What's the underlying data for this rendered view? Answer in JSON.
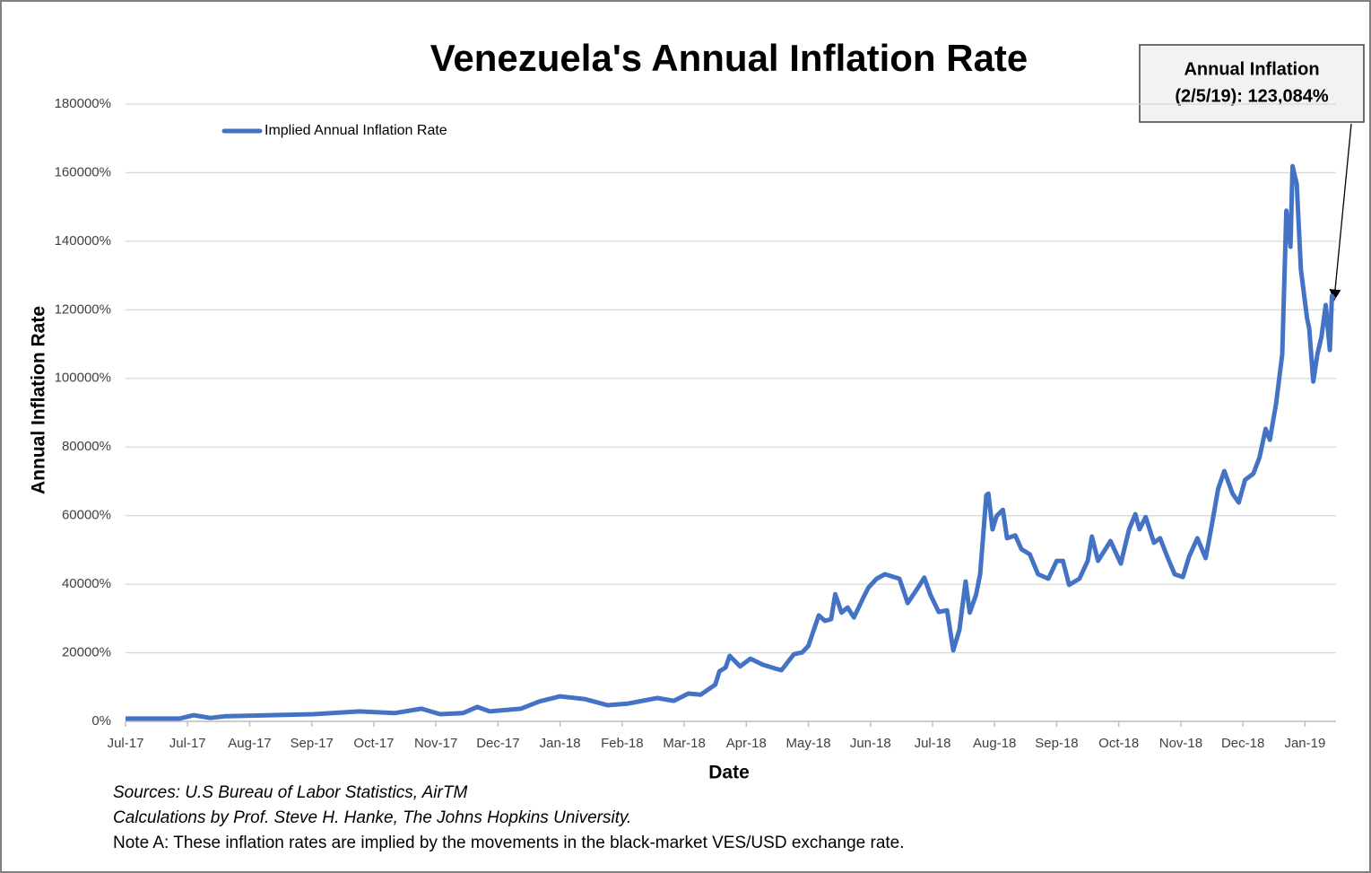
{
  "chart_data": {
    "type": "line",
    "title": "Venezuela's Annual Inflation Rate",
    "x_label": "Date",
    "y_label": "Annual Inflation Rate",
    "annotation": [
      "Annual Inflation",
      "(2/5/19): 123,084%"
    ],
    "notes": [
      "Sources: U.S Bureau of Labor Statistics, AirTM",
      "Calculations by Prof. Steve H. Hanke, The Johns Hopkins University.",
      "Note A: These inflation rates are implied by the movements in the black-market VES/USD exchange rate."
    ],
    "legend": "top-left",
    "grid": true,
    "x": [
      0,
      26,
      33,
      41,
      48,
      70,
      91,
      113,
      130,
      143,
      152,
      163,
      170,
      176,
      191,
      200,
      210,
      222,
      233,
      243,
      257,
      265,
      272,
      278,
      285,
      287,
      290,
      292,
      297,
      302,
      308,
      314,
      317,
      323,
      327,
      330,
      335,
      338,
      341,
      343,
      346,
      349,
      352,
      357,
      359,
      363,
      367,
      374,
      378,
      383,
      386,
      389,
      393,
      397,
      400,
      403,
      406,
      408,
      411,
      413,
      416,
      417,
      419,
      421,
      424,
      426,
      430,
      433,
      437,
      441,
      446,
      450,
      453,
      456,
      461,
      465,
      467,
      470,
      476,
      481,
      485,
      488,
      490,
      493,
      497,
      500,
      503,
      507,
      511,
      514,
      518,
      522,
      525,
      528,
      531,
      535,
      538,
      541,
      545,
      548,
      551,
      553,
      556,
      559,
      561,
      563,
      564,
      566,
      568,
      571,
      572,
      574,
      576,
      578,
      580,
      582,
      583,
      584
    ],
    "series": [
      {
        "name": "Implied Annual Inflation Rate",
        "color": "#4472c4",
        "values": [
          800,
          800,
          1800,
          1000,
          1500,
          1800,
          2100,
          2900,
          2400,
          3700,
          2100,
          2400,
          4200,
          2900,
          3700,
          5800,
          7300,
          6500,
          4700,
          5200,
          6800,
          6000,
          8100,
          7800,
          10700,
          14600,
          15700,
          19100,
          16000,
          18300,
          16500,
          15400,
          14900,
          19600,
          20100,
          22000,
          30900,
          29300,
          29800,
          37100,
          31700,
          33200,
          30300,
          36600,
          39000,
          41600,
          42900,
          41600,
          34500,
          39000,
          41900,
          36900,
          31900,
          32400,
          20700,
          26700,
          40800,
          31700,
          36900,
          42900,
          65900,
          66400,
          56000,
          59900,
          61700,
          53400,
          54200,
          50200,
          48700,
          42900,
          41600,
          46800,
          46800,
          39800,
          41600,
          46800,
          53900,
          46800,
          52600,
          46000,
          56000,
          60400,
          56000,
          59600,
          52100,
          53400,
          48700,
          42900,
          42100,
          48100,
          53400,
          47600,
          57300,
          67800,
          73000,
          66400,
          63800,
          70400,
          72200,
          76900,
          85300,
          82100,
          92600,
          107000,
          148900,
          138400,
          161900,
          156700,
          131800,
          117500,
          114800,
          99100,
          107000,
          112200,
          121400,
          108300,
          124000,
          123084
        ]
      }
    ],
    "xlim": [
      0,
      585
    ],
    "xticks": [
      {
        "value": 0,
        "label": "Jul-17"
      },
      {
        "value": 30,
        "label": "Jul-17"
      },
      {
        "value": 60,
        "label": "Aug-17"
      },
      {
        "value": 90,
        "label": "Sep-17"
      },
      {
        "value": 120,
        "label": "Oct-17"
      },
      {
        "value": 150,
        "label": "Nov-17"
      },
      {
        "value": 180,
        "label": "Dec-17"
      },
      {
        "value": 210,
        "label": "Jan-18"
      },
      {
        "value": 240,
        "label": "Feb-18"
      },
      {
        "value": 270,
        "label": "Mar-18"
      },
      {
        "value": 300,
        "label": "Apr-18"
      },
      {
        "value": 330,
        "label": "May-18"
      },
      {
        "value": 360,
        "label": "Jun-18"
      },
      {
        "value": 390,
        "label": "Jul-18"
      },
      {
        "value": 420,
        "label": "Aug-18"
      },
      {
        "value": 450,
        "label": "Sep-18"
      },
      {
        "value": 480,
        "label": "Oct-18"
      },
      {
        "value": 510,
        "label": "Nov-18"
      },
      {
        "value": 540,
        "label": "Dec-18"
      },
      {
        "value": 570,
        "label": "Jan-19"
      }
    ],
    "ylim": [
      0,
      180000
    ],
    "yticks": [
      {
        "value": 0,
        "label": "0%"
      },
      {
        "value": 20000,
        "label": "20000%"
      },
      {
        "value": 40000,
        "label": "40000%"
      },
      {
        "value": 60000,
        "label": "60000%"
      },
      {
        "value": 80000,
        "label": "80000%"
      },
      {
        "value": 100000,
        "label": "100000%"
      },
      {
        "value": 120000,
        "label": "120000%"
      },
      {
        "value": 140000,
        "label": "140000%"
      },
      {
        "value": 160000,
        "label": "160000%"
      },
      {
        "value": 180000,
        "label": "180000%"
      }
    ]
  }
}
